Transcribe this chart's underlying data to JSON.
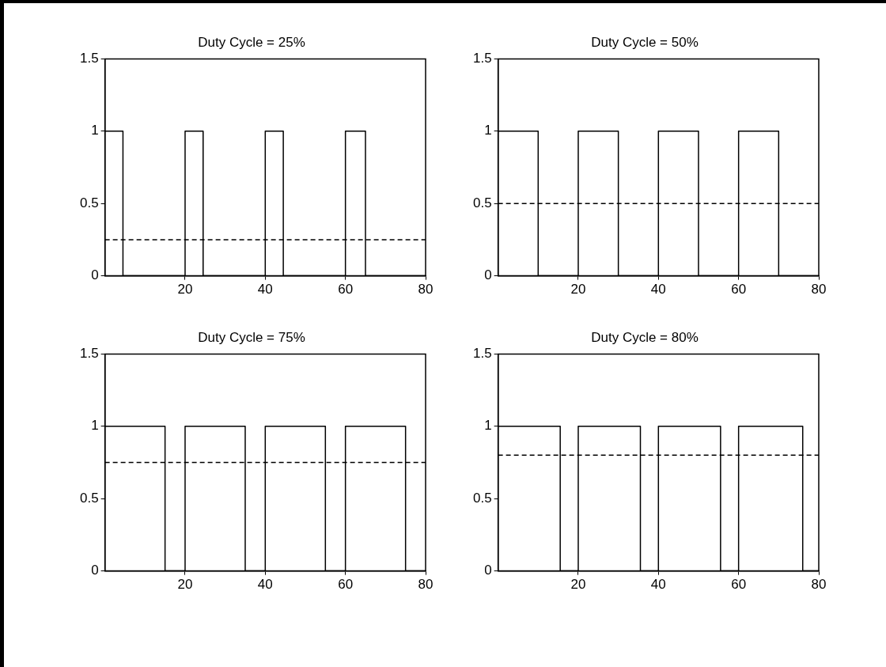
{
  "chart_data": [
    {
      "type": "line",
      "title": "Duty Cycle = 25%",
      "xlim": [
        0,
        80
      ],
      "xticks": [
        20,
        40,
        60,
        80
      ],
      "ylim": [
        0,
        1.5
      ],
      "yticks": [
        0,
        0.5,
        1,
        1.5
      ],
      "grid": false,
      "line_style": "solid",
      "marker": "none",
      "series": [
        {
          "color": "#000000",
          "x": [
            0,
            4.5,
            4.5,
            20,
            20,
            24.5,
            24.5,
            40,
            40,
            44.5,
            44.5,
            60,
            60,
            65,
            65,
            80
          ],
          "values": [
            1,
            1,
            0,
            0,
            1,
            1,
            0,
            0,
            1,
            1,
            0,
            0,
            1,
            1,
            0,
            0
          ]
        }
      ],
      "ref_lines": [
        {
          "axis": "y",
          "value": 0.25,
          "color": "#000000",
          "line_style": "dashed"
        }
      ]
    },
    {
      "type": "line",
      "title": "Duty Cycle = 50%",
      "xlim": [
        0,
        80
      ],
      "xticks": [
        20,
        40,
        60,
        80
      ],
      "ylim": [
        0,
        1.5
      ],
      "yticks": [
        0,
        0.5,
        1,
        1.5
      ],
      "grid": false,
      "line_style": "solid",
      "marker": "none",
      "series": [
        {
          "color": "#000000",
          "x": [
            0,
            10,
            10,
            20,
            20,
            30,
            30,
            40,
            40,
            50,
            50,
            60,
            60,
            70,
            70,
            80
          ],
          "values": [
            1,
            1,
            0,
            0,
            1,
            1,
            0,
            0,
            1,
            1,
            0,
            0,
            1,
            1,
            0,
            0
          ]
        }
      ],
      "ref_lines": [
        {
          "axis": "y",
          "value": 0.5,
          "color": "#000000",
          "line_style": "dashed"
        }
      ]
    },
    {
      "type": "line",
      "title": "Duty Cycle = 75%",
      "xlim": [
        0,
        80
      ],
      "xticks": [
        20,
        40,
        60,
        80
      ],
      "ylim": [
        0,
        1.5
      ],
      "yticks": [
        0,
        0.5,
        1,
        1.5
      ],
      "grid": false,
      "line_style": "solid",
      "marker": "none",
      "series": [
        {
          "color": "#000000",
          "x": [
            0,
            15,
            15,
            20,
            20,
            35,
            35,
            40,
            40,
            55,
            55,
            60,
            60,
            75,
            75,
            80
          ],
          "values": [
            1,
            1,
            0,
            0,
            1,
            1,
            0,
            0,
            1,
            1,
            0,
            0,
            1,
            1,
            0,
            0
          ]
        }
      ],
      "ref_lines": [
        {
          "axis": "y",
          "value": 0.75,
          "color": "#000000",
          "line_style": "dashed"
        }
      ]
    },
    {
      "type": "line",
      "title": "Duty Cycle = 80%",
      "xlim": [
        0,
        80
      ],
      "xticks": [
        20,
        40,
        60,
        80
      ],
      "ylim": [
        0,
        1.5
      ],
      "yticks": [
        0,
        0.5,
        1,
        1.5
      ],
      "grid": false,
      "line_style": "solid",
      "marker": "none",
      "series": [
        {
          "color": "#000000",
          "x": [
            0,
            15.5,
            15.5,
            20,
            20,
            35.5,
            35.5,
            40,
            40,
            55.5,
            55.5,
            60,
            60,
            76,
            76,
            80
          ],
          "values": [
            1,
            1,
            0,
            0,
            1,
            1,
            0,
            0,
            1,
            1,
            0,
            0,
            1,
            1,
            0,
            0
          ]
        }
      ],
      "ref_lines": [
        {
          "axis": "y",
          "value": 0.8,
          "color": "#000000",
          "line_style": "dashed"
        }
      ]
    }
  ]
}
